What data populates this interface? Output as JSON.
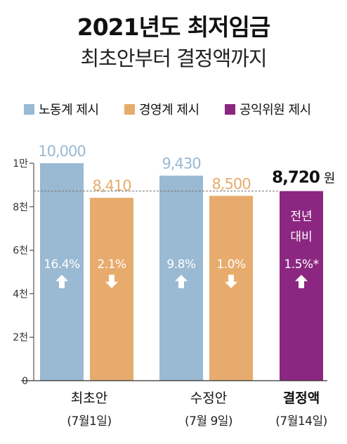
{
  "title": {
    "line1": "2021년도 최저임금",
    "line2": "최초안부터 결정액까지"
  },
  "legend": [
    {
      "label": "노동계 제시",
      "color": "#9ab9d2"
    },
    {
      "label": "경영계 제시",
      "color": "#e7ac6d"
    },
    {
      "label": "공익위원 제시",
      "color": "#8b2780"
    }
  ],
  "colors": {
    "labor": "#9ab9d2",
    "management": "#e7ac6d",
    "public": "#8b2780",
    "axis": "#333333",
    "reference_line": "#777777",
    "label_text": "#ffffff"
  },
  "chart_data": {
    "type": "bar",
    "ylim": [
      0,
      10000
    ],
    "ytick_values": [
      0,
      2000,
      4000,
      6000,
      8000,
      10000
    ],
    "ytick_labels": [
      "0",
      "2천",
      "4천",
      "6천",
      "8천",
      "1만"
    ],
    "reference_value": 8720,
    "groups": [
      {
        "label": "최초안",
        "date": "(7월1일)",
        "bars": [
          {
            "series": "labor",
            "value": 10000,
            "value_label": "10,000",
            "change": "16.4%",
            "direction": "up"
          },
          {
            "series": "management",
            "value": 8410,
            "value_label": "8,410",
            "change": "2.1%",
            "direction": "down"
          }
        ]
      },
      {
        "label": "수정안",
        "date": "(7월 9일)",
        "bars": [
          {
            "series": "labor",
            "value": 9430,
            "value_label": "9,430",
            "change": "9.8%",
            "direction": "up"
          },
          {
            "series": "management",
            "value": 8500,
            "value_label": "8,500",
            "change": "1.0%",
            "direction": "down"
          }
        ]
      },
      {
        "label": "결정액",
        "date": "(7월14일)",
        "bars": [
          {
            "series": "public",
            "value": 8720,
            "value_label": "8,720",
            "unit": "원",
            "note_line1": "전년",
            "note_line2": "대비",
            "change": "1.5%*",
            "direction": "up"
          }
        ]
      }
    ]
  }
}
